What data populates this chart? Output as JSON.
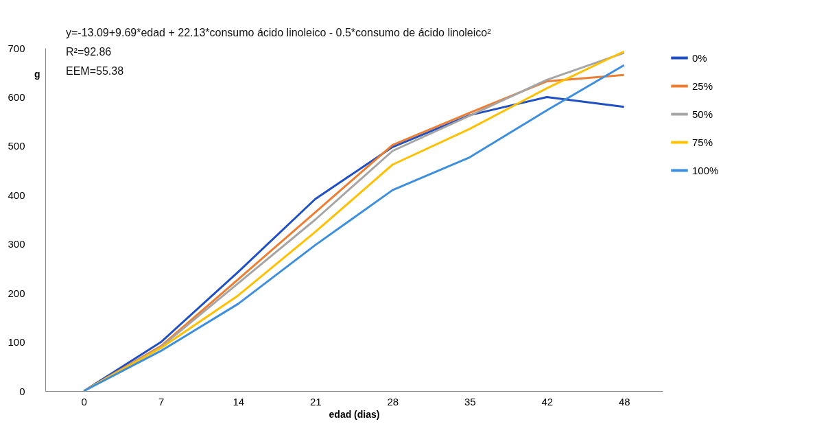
{
  "chart_data": {
    "type": "line",
    "categories": [
      "0",
      "7",
      "14",
      "21",
      "28",
      "35",
      "42",
      "48"
    ],
    "xlabel": "edad (dias)",
    "ylabel": "g",
    "ylim": [
      0,
      700
    ],
    "yticks": [
      0,
      100,
      200,
      300,
      400,
      500,
      600,
      700
    ],
    "grid": false,
    "legend": "right",
    "marker": "none",
    "line_style": "solid",
    "annotations": [
      "y=-13.09+9.69*edad + 22.13*consumo ácido linoleico - 0.5*consumo de ácido linoleico²",
      "R²=92.86",
      "EEM=55.38"
    ],
    "series": [
      {
        "name": "0%",
        "color": "#1f4fc4",
        "values": [
          0,
          100,
          243,
          392,
          498,
          563,
          600,
          580
        ]
      },
      {
        "name": "25%",
        "color": "#ed7d31",
        "values": [
          0,
          92,
          228,
          365,
          502,
          568,
          632,
          645
        ]
      },
      {
        "name": "50%",
        "color": "#a5a5a5",
        "values": [
          0,
          90,
          220,
          350,
          490,
          562,
          635,
          690
        ]
      },
      {
        "name": "75%",
        "color": "#ffc000",
        "values": [
          0,
          88,
          195,
          325,
          462,
          535,
          618,
          693
        ]
      },
      {
        "name": "100%",
        "color": "#3d8fde",
        "values": [
          0,
          82,
          178,
          298,
          410,
          477,
          573,
          665
        ]
      }
    ]
  }
}
